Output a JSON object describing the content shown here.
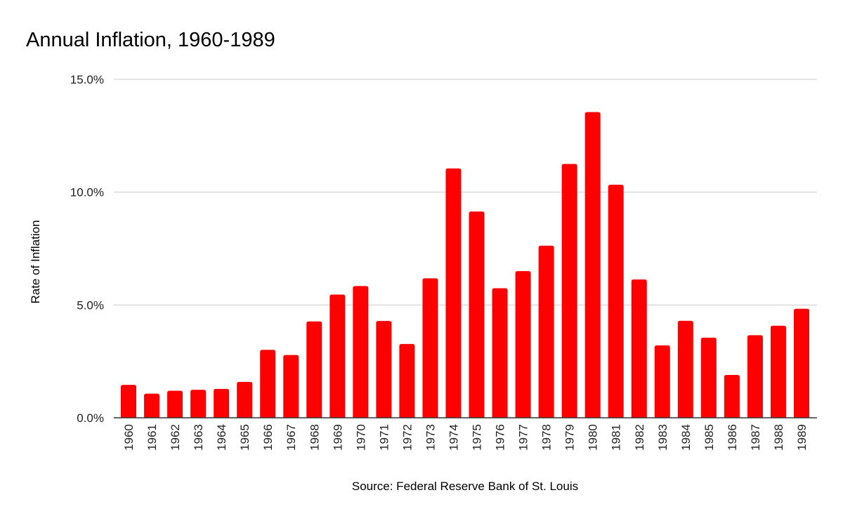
{
  "chart_data": {
    "type": "bar",
    "title": "Annual Inflation, 1960-1989",
    "xlabel": "Source: Federal Reserve Bank of St. Louis",
    "ylabel": "Rate of Inflation",
    "ylim": [
      0,
      15
    ],
    "yticks": [
      "0.0%",
      "5.0%",
      "10.0%",
      "15.0%"
    ],
    "ytick_values": [
      0,
      5,
      10,
      15
    ],
    "grid": true,
    "legend": "none",
    "categories": [
      "1960",
      "1961",
      "1962",
      "1963",
      "1964",
      "1965",
      "1966",
      "1967",
      "1968",
      "1969",
      "1970",
      "1971",
      "1972",
      "1973",
      "1974",
      "1975",
      "1976",
      "1977",
      "1978",
      "1979",
      "1980",
      "1981",
      "1982",
      "1983",
      "1984",
      "1985",
      "1986",
      "1987",
      "1988",
      "1989"
    ],
    "series": [
      {
        "values": [
          1.46,
          1.07,
          1.2,
          1.24,
          1.28,
          1.59,
          3.01,
          2.78,
          4.27,
          5.46,
          5.84,
          4.29,
          3.27,
          6.18,
          11.05,
          9.14,
          5.74,
          6.5,
          7.63,
          11.25,
          13.55,
          10.33,
          6.13,
          3.21,
          4.3,
          3.55,
          1.9,
          3.66,
          4.08,
          4.83
        ],
        "color": "#ff0000"
      }
    ]
  }
}
